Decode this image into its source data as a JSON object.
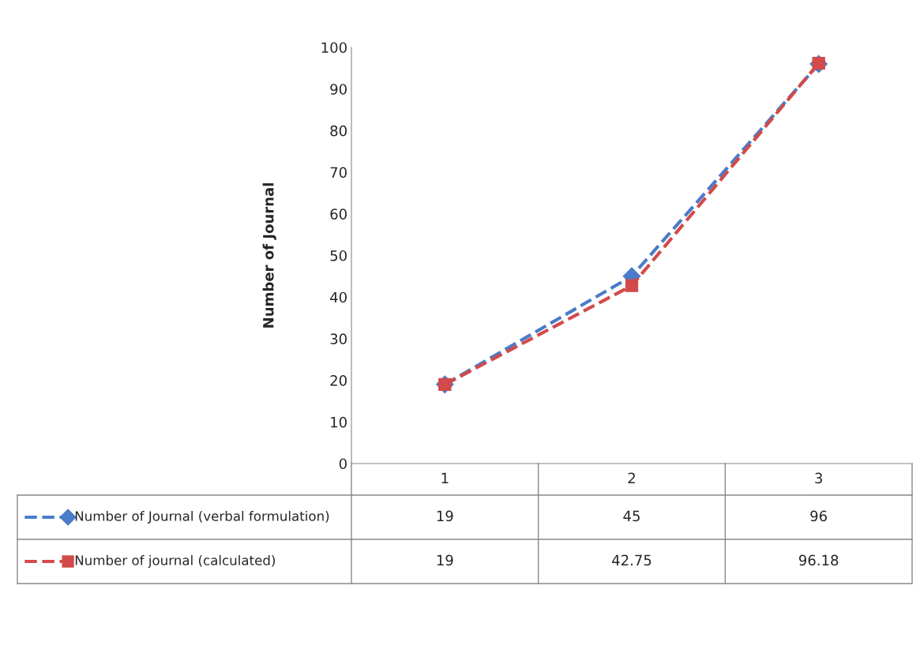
{
  "chart_data": {
    "type": "line",
    "ylabel": "Number of Journal",
    "categories": [
      "1",
      "2",
      "3"
    ],
    "series": [
      {
        "name": "Number of Journal (verbal formulation)",
        "color": "#4a7cc9",
        "marker": "diamond",
        "values": [
          19,
          45,
          96
        ]
      },
      {
        "name": "Number of journal (calculated)",
        "color": "#d24a4a",
        "marker": "square",
        "values": [
          19,
          42.75,
          96.18
        ]
      }
    ],
    "ylim": [
      0,
      100
    ],
    "yticks": [
      0,
      10,
      20,
      30,
      40,
      50,
      60,
      70,
      80,
      90,
      100
    ],
    "grid": false,
    "legend": "bottom",
    "line_style": "dashed",
    "data_labels": true
  }
}
